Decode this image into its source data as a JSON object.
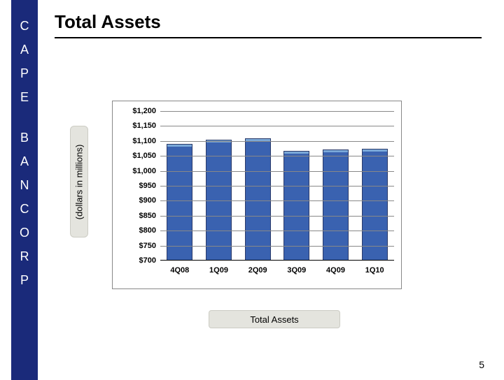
{
  "page": {
    "title": "Total Assets",
    "page_number": "5",
    "background_color": "#ffffff"
  },
  "sidebar": {
    "background_color": "#1a2a7a",
    "text_color": "#ffffff",
    "letters_top": [
      "C",
      "A",
      "P",
      "E"
    ],
    "letters_bottom": [
      "B",
      "A",
      "N",
      "C",
      "O",
      "R",
      "P"
    ]
  },
  "chart": {
    "type": "bar",
    "ylabel": "(dollars in millions)",
    "legend_label": "Total Assets",
    "categories": [
      "4Q08",
      "1Q09",
      "2Q09",
      "3Q09",
      "4Q09",
      "1Q10"
    ],
    "values": [
      1090,
      1105,
      1110,
      1068,
      1072,
      1075
    ],
    "ylim": [
      700,
      1200
    ],
    "ytick_step": 50,
    "ytick_labels": [
      "$700",
      "$750",
      "$800",
      "$850",
      "$900",
      "$950",
      "$1,000",
      "$1,050",
      "$1,100",
      "$1,150",
      "$1,200"
    ],
    "bar_fill_color": "#3a62b0",
    "bar_top_color": "#7aa8d8",
    "bar_border_color": "#2a3a6a",
    "bar_width": 0.66,
    "grid_color": "#888888",
    "frame_border_color": "#888888",
    "label_bg_color": "#e4e4de",
    "label_border_color": "#ccccc4",
    "tick_fontsize": 11,
    "tick_fontweight": "bold",
    "ylabel_fontsize": 13,
    "title_fontsize": 26
  }
}
